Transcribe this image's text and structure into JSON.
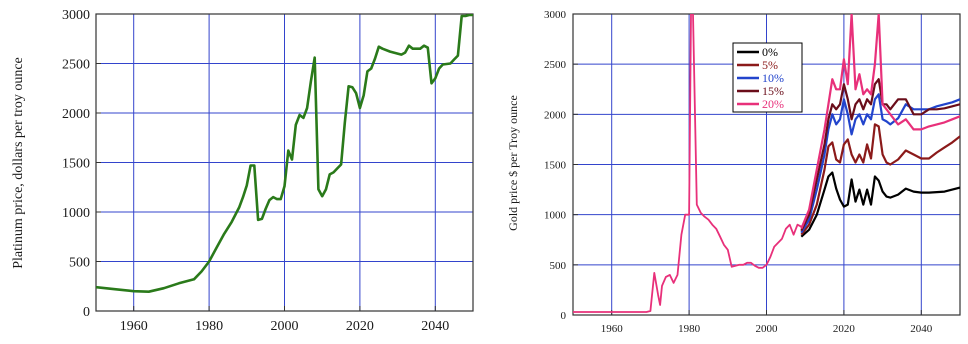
{
  "colors": {
    "grid": "#3344cc",
    "frame": "#333333",
    "platinum_line": "#2a7a1a"
  },
  "chart_data": [
    {
      "type": "line",
      "xlim": [
        1950,
        2050
      ],
      "ylim": [
        0,
        3000
      ],
      "ylabel": "Platinum price, dollars per troy ounce",
      "xticks": [
        "1960",
        "1980",
        "2000",
        "2020",
        "2040"
      ],
      "yticks": [
        "0",
        "500",
        "1000",
        "1500",
        "2000",
        "2500",
        "3000"
      ],
      "grid": true,
      "series": [
        {
          "color": "#2a7a1a",
          "x": [
            1950,
            1955,
            1960,
            1964,
            1968,
            1972,
            1976,
            1978,
            1980,
            1982,
            1984,
            1986,
            1988,
            1989,
            1990,
            1991,
            1992,
            1993,
            1994,
            1995,
            1996,
            1997,
            1998,
            1999,
            2000,
            2001,
            2002,
            2003,
            2004,
            2005,
            2006,
            2007,
            2008,
            2009,
            2010,
            2011,
            2012,
            2013,
            2014,
            2015,
            2016,
            2017,
            2018,
            2019,
            2020,
            2021,
            2022,
            2023,
            2024,
            2025,
            2026,
            2028,
            2030,
            2031,
            2032,
            2033,
            2034,
            2035,
            2036,
            2037,
            2038,
            2039,
            2040,
            2041,
            2042,
            2044,
            2045,
            2046,
            2047,
            2048,
            2049,
            2050
          ],
          "values": [
            240,
            220,
            200,
            195,
            230,
            280,
            320,
            400,
            500,
            640,
            780,
            900,
            1050,
            1150,
            1270,
            1470,
            1470,
            920,
            930,
            1030,
            1120,
            1150,
            1130,
            1130,
            1260,
            1620,
            1530,
            1880,
            1980,
            1950,
            2050,
            2320,
            2560,
            1230,
            1160,
            1230,
            1380,
            1400,
            1440,
            1480,
            1900,
            2270,
            2260,
            2200,
            2050,
            2180,
            2420,
            2450,
            2550,
            2670,
            2650,
            2620,
            2600,
            2590,
            2610,
            2680,
            2650,
            2650,
            2650,
            2680,
            2660,
            2300,
            2350,
            2450,
            2490,
            2500,
            2540,
            2580,
            2980,
            2980,
            2990,
            2990
          ]
        }
      ]
    },
    {
      "type": "line",
      "xlim": [
        1950,
        2050
      ],
      "ylim": [
        0,
        3000
      ],
      "ylabel": "Gold price $ per Troy ounce",
      "xticks": [
        "1960",
        "1980",
        "2000",
        "2020",
        "2040"
      ],
      "yticks": [
        "0",
        "500",
        "1000",
        "1500",
        "2000",
        "2500",
        "3000"
      ],
      "grid": true,
      "legend": {
        "position": "top-center",
        "entries": [
          "0%",
          "5%",
          "10%",
          "15%",
          "20%"
        ]
      },
      "history": {
        "color": "#e8307a",
        "x": [
          1950,
          1955,
          1960,
          1965,
          1969,
          1970,
          1971,
          1972,
          1972.5,
          1973,
          1974,
          1975,
          1976,
          1977,
          1978,
          1979,
          1980,
          1980.5,
          1981,
          1982,
          1983,
          1984,
          1985,
          1986,
          1987,
          1988,
          1989,
          1990,
          1991,
          1992,
          1993,
          1994,
          1995,
          1996,
          1997,
          1998,
          1999,
          2000,
          2001,
          2002,
          2003,
          2004,
          2005,
          2006,
          2007,
          2008,
          2009,
          2010
        ],
        "values": [
          30,
          30,
          30,
          30,
          30,
          40,
          420,
          200,
          100,
          290,
          380,
          400,
          320,
          400,
          800,
          1000,
          1000,
          3000,
          3000,
          1100,
          1020,
          980,
          950,
          900,
          860,
          780,
          700,
          650,
          480,
          490,
          500,
          500,
          520,
          520,
          490,
          470,
          470,
          500,
          580,
          680,
          720,
          760,
          860,
          900,
          800,
          900,
          880,
          920
        ]
      },
      "series": [
        {
          "name": "0%",
          "color": "#000000",
          "x": [
            2009,
            2011,
            2013,
            2015,
            2016,
            2017,
            2018,
            2019,
            2020,
            2021,
            2022,
            2023,
            2024,
            2025,
            2026,
            2027,
            2028,
            2029,
            2030,
            2031,
            2032,
            2034,
            2036,
            2038,
            2040,
            2042,
            2044,
            2046,
            2048,
            2050
          ],
          "values": [
            780,
            850,
            1000,
            1250,
            1380,
            1420,
            1260,
            1150,
            1080,
            1100,
            1350,
            1130,
            1250,
            1100,
            1250,
            1100,
            1380,
            1340,
            1230,
            1180,
            1170,
            1200,
            1260,
            1230,
            1220,
            1220,
            1225,
            1230,
            1250,
            1270
          ]
        },
        {
          "name": "5%",
          "color": "#8b1a1a",
          "x": [
            2009,
            2011,
            2013,
            2015,
            2016,
            2017,
            2018,
            2019,
            2020,
            2021,
            2022,
            2023,
            2024,
            2025,
            2026,
            2027,
            2028,
            2029,
            2030,
            2031,
            2032,
            2034,
            2036,
            2038,
            2040,
            2042,
            2044,
            2046,
            2048,
            2050
          ],
          "values": [
            800,
            900,
            1100,
            1450,
            1680,
            1720,
            1550,
            1520,
            1700,
            1750,
            1600,
            1520,
            1600,
            1520,
            1700,
            1560,
            1900,
            1880,
            1600,
            1520,
            1500,
            1550,
            1640,
            1600,
            1560,
            1560,
            1620,
            1670,
            1720,
            1780
          ]
        },
        {
          "name": "10%",
          "color": "#2244cc",
          "x": [
            2009,
            2011,
            2013,
            2015,
            2016,
            2017,
            2018,
            2019,
            2020,
            2021,
            2022,
            2023,
            2024,
            2025,
            2026,
            2027,
            2028,
            2029,
            2030,
            2031,
            2032,
            2034,
            2036,
            2038,
            2040,
            2042,
            2044,
            2046,
            2048,
            2050
          ],
          "values": [
            820,
            950,
            1250,
            1600,
            1850,
            2000,
            1900,
            1950,
            2150,
            2000,
            1800,
            1950,
            2000,
            1900,
            2000,
            1950,
            2150,
            2200,
            1950,
            1930,
            1900,
            1960,
            2100,
            2050,
            2050,
            2050,
            2080,
            2100,
            2120,
            2150
          ]
        },
        {
          "name": "15%",
          "color": "#6a0d1a",
          "x": [
            2009,
            2011,
            2013,
            2015,
            2016,
            2017,
            2018,
            2019,
            2020,
            2021,
            2022,
            2023,
            2024,
            2025,
            2026,
            2027,
            2028,
            2029,
            2030,
            2031,
            2032,
            2034,
            2036,
            2038,
            2040,
            2042,
            2044,
            2046,
            2048,
            2050
          ],
          "values": [
            840,
            1000,
            1350,
            1700,
            1950,
            2100,
            2050,
            2100,
            2300,
            2150,
            1950,
            2100,
            2150,
            2050,
            2150,
            2100,
            2300,
            2350,
            2100,
            2100,
            2050,
            2150,
            2150,
            2000,
            2000,
            2050,
            2050,
            2060,
            2080,
            2100
          ]
        },
        {
          "name": "20%",
          "color": "#e8307a",
          "x": [
            2009,
            2011,
            2013,
            2015,
            2016,
            2017,
            2018,
            2019,
            2020,
            2021,
            2022,
            2023,
            2024,
            2025,
            2026,
            2027,
            2028,
            2029,
            2030,
            2031,
            2032,
            2034,
            2036,
            2038,
            2040,
            2042,
            2044,
            2046,
            2048,
            2050
          ],
          "values": [
            860,
            1050,
            1450,
            1850,
            2100,
            2350,
            2250,
            2250,
            2550,
            2300,
            3000,
            2250,
            2400,
            2200,
            2250,
            2200,
            2500,
            3000,
            2100,
            2050,
            2000,
            1900,
            1950,
            1850,
            1850,
            1880,
            1900,
            1920,
            1950,
            1980
          ]
        }
      ]
    }
  ]
}
